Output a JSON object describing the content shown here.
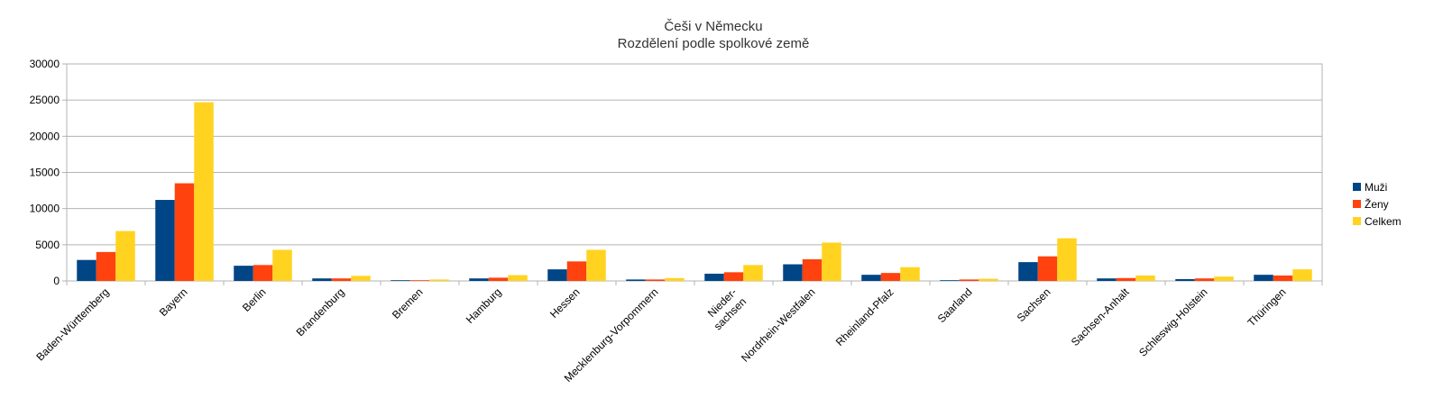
{
  "chart_data": {
    "type": "bar",
    "title": "Češi v Německu",
    "subtitle": "Rozdělení podle spolkové země",
    "xlabel": "",
    "ylabel": "",
    "ylim": [
      0,
      30000
    ],
    "yticks": [
      0,
      5000,
      10000,
      15000,
      20000,
      25000,
      30000
    ],
    "grid": true,
    "legend_position": "right",
    "categories": [
      [
        "Baden-Württemberg"
      ],
      [
        "Bayern"
      ],
      [
        "Berlin"
      ],
      [
        "Brandenburg"
      ],
      [
        "Bremen"
      ],
      [
        "Hamburg"
      ],
      [
        "Hessen"
      ],
      [
        "Mecklenburg-Vorpommern"
      ],
      [
        "Nieder-",
        "sachsen"
      ],
      [
        "Nordrhein-Westfalen"
      ],
      [
        "Rheinland-Pfalz"
      ],
      [
        "Saarland"
      ],
      [
        "Sachsen"
      ],
      [
        "Sachsen-Anhalt"
      ],
      [
        "Schleswig-Holstein"
      ],
      [
        "Thüringen"
      ]
    ],
    "series": [
      {
        "name": "Muži",
        "color": "#004586",
        "values": [
          2900,
          11200,
          2100,
          350,
          100,
          350,
          1600,
          200,
          1000,
          2300,
          850,
          100,
          2600,
          350,
          250,
          850
        ]
      },
      {
        "name": "Ženy",
        "color": "#ff420e",
        "values": [
          4000,
          13500,
          2200,
          350,
          100,
          450,
          2700,
          200,
          1200,
          3000,
          1100,
          200,
          3400,
          400,
          350,
          750
        ]
      },
      {
        "name": "Celkem",
        "color": "#ffd320",
        "values": [
          6900,
          24700,
          4300,
          700,
          200,
          800,
          4300,
          400,
          2200,
          5300,
          1900,
          300,
          5900,
          750,
          600,
          1600
        ]
      }
    ]
  }
}
